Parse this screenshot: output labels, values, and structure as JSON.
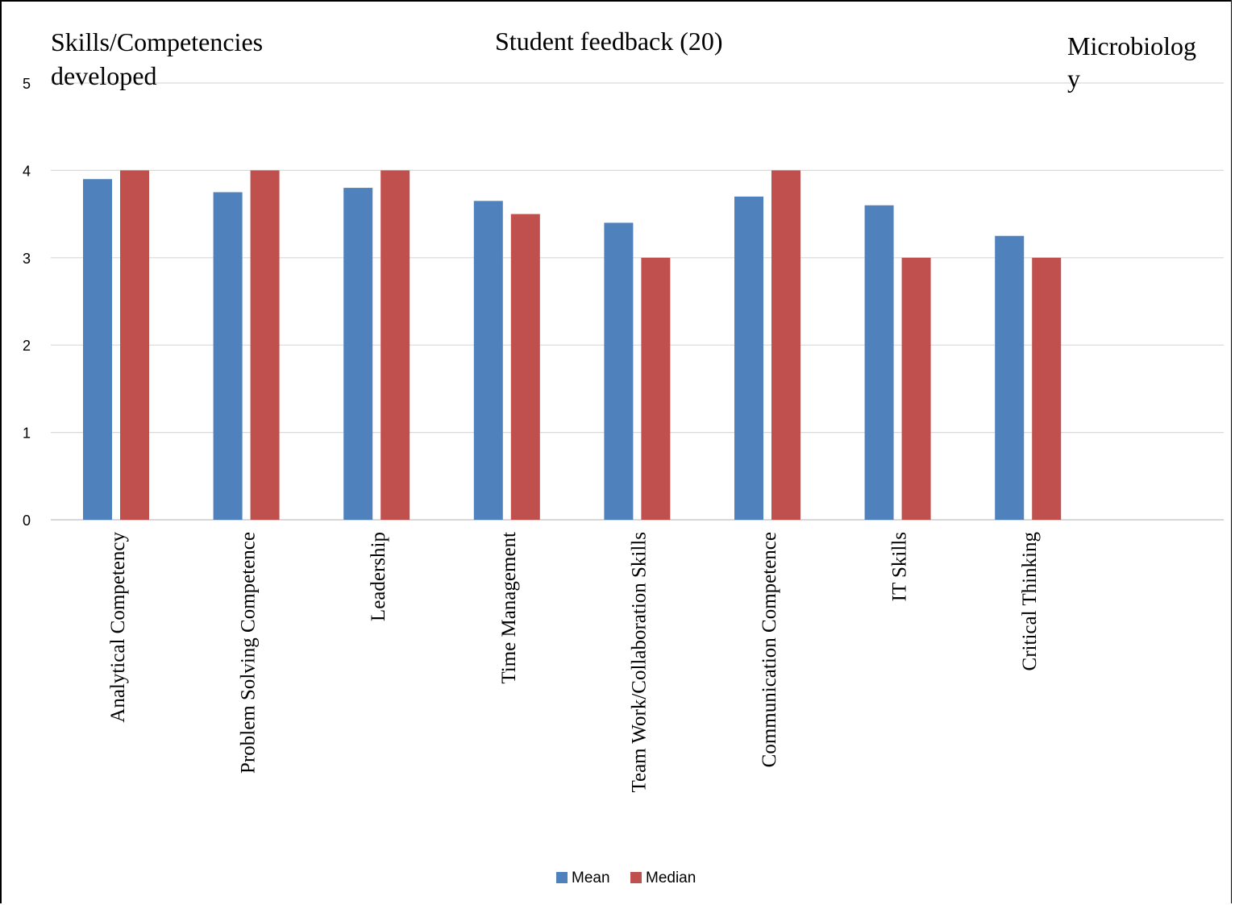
{
  "header": {
    "left_line1": "Skills/Competencies",
    "left_line2": "developed",
    "center_title": "Student feedback (20)",
    "right_line1": "Microbiolog",
    "right_line2": "y"
  },
  "chart_data": {
    "type": "bar",
    "title": "Student feedback (20)",
    "xlabel": "",
    "ylabel": "",
    "ylim": [
      0,
      5
    ],
    "yticks": [
      "0",
      "1",
      "2",
      "3",
      "4",
      "5"
    ],
    "grid": true,
    "legend_position": "bottom",
    "categories": [
      "Analytical Competency",
      "Problem Solving Competence",
      "Leadership",
      "Time Management",
      "Team Work/Collaboration Skills",
      "Communication Competence",
      "IT Skills",
      "Critical Thinking"
    ],
    "series": [
      {
        "name": "Mean",
        "color": "#4F81BD",
        "values": [
          3.9,
          3.75,
          3.8,
          3.65,
          3.4,
          3.7,
          3.6,
          3.25
        ]
      },
      {
        "name": "Median",
        "color": "#C0504D",
        "values": [
          4,
          4,
          4,
          3.5,
          3,
          4,
          3,
          3
        ]
      }
    ]
  }
}
